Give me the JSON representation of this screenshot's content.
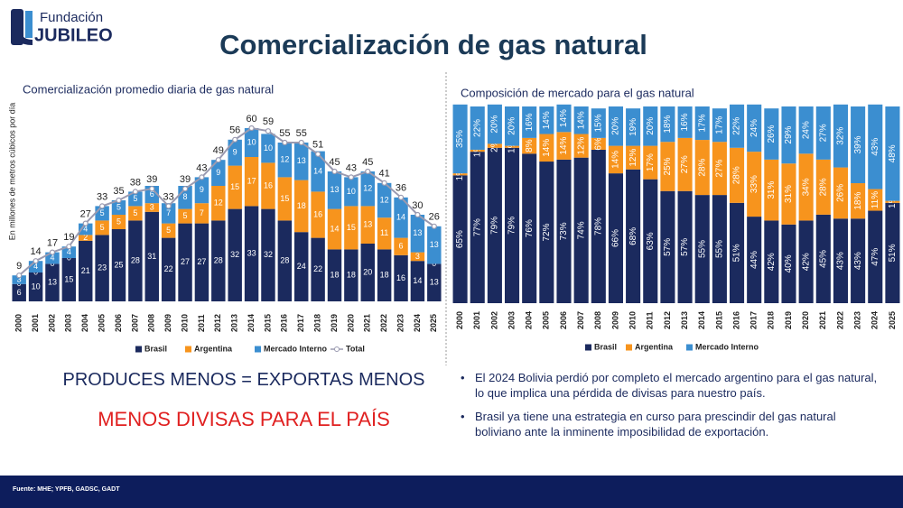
{
  "logo": {
    "top": "Fundación",
    "name": "JUBILEO"
  },
  "title": "Comercialización de gas natural",
  "chart_data": [
    {
      "type": "bar",
      "stacked": true,
      "title": "Comercialización promedio diaria de gas natural",
      "ylabel": "En millones de metros cúbicos por día",
      "categories": [
        "2000",
        "2001",
        "2002",
        "2003",
        "2004",
        "2005",
        "2006",
        "2007",
        "2008",
        "2009",
        "2010",
        "2011",
        "2012",
        "2013",
        "2014",
        "2015",
        "2016",
        "2017",
        "2018",
        "2019",
        "2020",
        "2021",
        "2022",
        "2023",
        "2024",
        "2025"
      ],
      "ylim": [
        0,
        60
      ],
      "series": [
        {
          "name": "Brasil",
          "color": "#1b2a5e",
          "values": [
            6,
            10,
            13,
            15,
            21,
            23,
            25,
            28,
            31,
            22,
            27,
            27,
            28,
            32,
            33,
            32,
            28,
            24,
            22,
            18,
            18,
            20,
            18,
            16,
            14,
            13
          ]
        },
        {
          "name": "Argentina",
          "color": "#f7941d",
          "values": [
            0,
            0,
            0,
            0,
            2,
            5,
            5,
            5,
            3,
            5,
            5,
            7,
            12,
            15,
            17,
            16,
            15,
            18,
            16,
            14,
            15,
            13,
            11,
            6,
            3,
            0
          ]
        },
        {
          "name": "Mercado Interno",
          "color": "#3b8ed0",
          "values": [
            3,
            4,
            4,
            4,
            4,
            5,
            5,
            5,
            6,
            7,
            8,
            9,
            9,
            9,
            10,
            10,
            12,
            13,
            14,
            13,
            10,
            12,
            12,
            14,
            13,
            13
          ]
        },
        {
          "name": "Total",
          "color": "#9a9ab0",
          "style": "line",
          "values": [
            9,
            14,
            17,
            19,
            27,
            33,
            35,
            38,
            39,
            33,
            39,
            43,
            49,
            56,
            60,
            59,
            55,
            55,
            51,
            45,
            43,
            45,
            41,
            36,
            30,
            26
          ]
        }
      ]
    },
    {
      "type": "bar",
      "stacked": true,
      "title": "Composición de mercado para  el gas natural",
      "categories": [
        "2000",
        "2001",
        "2002",
        "2003",
        "2004",
        "2005",
        "2006",
        "2007",
        "2008",
        "2009",
        "2010",
        "2011",
        "2012",
        "2013",
        "2014",
        "2015",
        "2016",
        "2017",
        "2018",
        "2019",
        "2020",
        "2021",
        "2022",
        "2023",
        "2024",
        "2025"
      ],
      "ylim": [
        0,
        100
      ],
      "series": [
        {
          "name": "Brasil",
          "color": "#1b2a5e",
          "values": [
            65,
            77,
            79,
            79,
            76,
            72,
            73,
            74,
            78,
            66,
            68,
            63,
            57,
            57,
            55,
            55,
            51,
            44,
            42,
            40,
            42,
            45,
            43,
            43,
            47,
            51
          ],
          "value_labels": [
            "65%",
            "77%",
            "79%",
            "79%",
            "76%",
            "72%",
            "73%",
            "74%",
            "78%",
            "66%",
            "68%",
            "63%",
            "57%",
            "57%",
            "55%",
            "55%",
            "51%",
            "44%",
            "42%",
            "40%",
            "42%",
            "45%",
            "43%",
            "43%",
            "47%",
            "51%"
          ]
        },
        {
          "name": "Argentina",
          "color": "#f7941d",
          "values": [
            1,
            1,
            2,
            1,
            8,
            14,
            14,
            12,
            6,
            14,
            12,
            17,
            25,
            27,
            28,
            27,
            28,
            33,
            31,
            31,
            34,
            28,
            26,
            18,
            11,
            1
          ],
          "value_labels": [
            "1%",
            "1%",
            "2%",
            "1%",
            "8%",
            "14%",
            "14%",
            "12%",
            "6%",
            "14%",
            "12%",
            "17%",
            "25%",
            "27%",
            "28%",
            "27%",
            "28%",
            "33%",
            "31%",
            "31%",
            "34%",
            "28%",
            "26%",
            "18%",
            "11%",
            "1%"
          ]
        },
        {
          "name": "Mercado Interno",
          "color": "#3b8ed0",
          "values": [
            35,
            22,
            20,
            20,
            16,
            14,
            14,
            14,
            15,
            20,
            19,
            20,
            18,
            16,
            17,
            17,
            22,
            24,
            26,
            29,
            24,
            27,
            32,
            39,
            43,
            48
          ],
          "value_labels": [
            "35%",
            "22%",
            "20%",
            "20%",
            "16%",
            "14%",
            "14%",
            "14%",
            "15%",
            "20%",
            "19%",
            "20%",
            "18%",
            "16%",
            "17%",
            "17%",
            "22%",
            "24%",
            "26%",
            "29%",
            "24%",
            "27%",
            "32%",
            "39%",
            "43%",
            "48%"
          ]
        }
      ]
    }
  ],
  "slogans": [
    "PRODUCES MENOS = EXPORTAS MENOS",
    "MENOS DIVISAS PARA EL PAÍS"
  ],
  "bullets": [
    "El 2024 Bolivia perdió por completo el mercado argentino para el gas natural, lo que implica una pérdida de divisas para nuestro país.",
    "Brasil ya tiene una estrategia en curso para prescindir del gas natural boliviano ante la inminente imposibilidad de exportación."
  ],
  "footer": "Fuente: MHE; YPFB, GADSC, GADT"
}
